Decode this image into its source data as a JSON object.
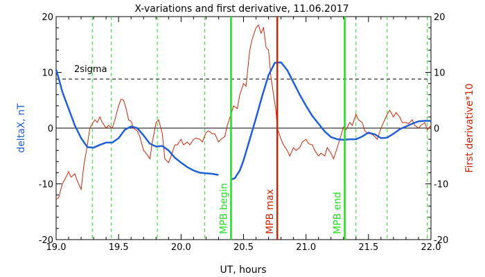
{
  "chart_data": {
    "type": "line",
    "title": "X-variations and first derivative, 11.06.2017",
    "xlabel": "UT, hours",
    "ylabel_left": "deltaX, nT",
    "ylabel_right": "First derivative*10",
    "xlim": [
      19.0,
      22.0
    ],
    "ylim": [
      -20,
      20
    ],
    "xticks": [
      "19.0",
      "19.5",
      "20.0",
      "20.5",
      "21.0",
      "21.5",
      "22.0"
    ],
    "yticks_left": [
      "-20",
      "-10",
      "0",
      "10",
      "20"
    ],
    "yticks_right": [
      "-20",
      "-10",
      "0",
      "10",
      "20"
    ],
    "sigma_label": "2sigma",
    "sigma_level": 8.8,
    "zero_level": 0,
    "colors": {
      "deltaX": "#1f5fd6",
      "derivative": "#cc2200",
      "mpb": "#22dd22",
      "max": "#cc2200",
      "left_axis_label": "#1f5fd6",
      "right_axis_label": "#cc2200"
    },
    "vertical_markers": [
      {
        "name": "MPB begin",
        "x": 20.4,
        "color": "#22dd22"
      },
      {
        "name": "MPB max",
        "x": 20.77,
        "color": "#cc2200"
      },
      {
        "name": "MPB end",
        "x": 21.31,
        "color": "#22dd22"
      }
    ],
    "dashed_verticals": [
      19.29,
      19.44,
      19.81,
      20.19,
      21.4,
      21.65,
      21.97
    ],
    "series": [
      {
        "name": "deltaX, nT",
        "color": "#1f5fd6",
        "segments": [
          {
            "x": [
              19.0,
              19.02,
              19.05,
              19.1,
              19.15,
              19.2,
              19.25,
              19.3,
              19.35,
              19.4,
              19.45,
              19.5,
              19.55,
              19.6,
              19.65,
              19.7,
              19.75,
              19.8,
              19.85,
              19.9,
              19.95,
              20.0,
              20.05,
              20.1,
              20.15,
              20.2,
              20.25,
              20.3
            ],
            "y": [
              10.5,
              9.0,
              6.5,
              3.5,
              0.5,
              -1.8,
              -3.4,
              -3.5,
              -3.0,
              -2.6,
              -2.6,
              -1.8,
              -0.3,
              0.3,
              0.0,
              -1.3,
              -2.8,
              -3.3,
              -3.2,
              -4.0,
              -5.3,
              -6.2,
              -7.0,
              -7.6,
              -8.0,
              -8.1,
              -8.2,
              -8.4
            ]
          },
          {
            "x": [
              20.4,
              20.43,
              20.47,
              20.5,
              20.55,
              20.6,
              20.65,
              20.7,
              20.75,
              20.8,
              20.85,
              20.9,
              20.95,
              21.0,
              21.05,
              21.1,
              21.15,
              21.2,
              21.25,
              21.3,
              21.35,
              21.4,
              21.45,
              21.5,
              21.55,
              21.6,
              21.65,
              21.7,
              21.75,
              21.8,
              21.85,
              21.9,
              21.95,
              22.0
            ],
            "y": [
              -9.2,
              -9.0,
              -7.6,
              -5.8,
              -2.0,
              1.8,
              5.8,
              9.5,
              11.7,
              11.8,
              10.4,
              8.2,
              6.0,
              4.0,
              2.2,
              0.8,
              -0.6,
              -1.6,
              -2.0,
              -2.1,
              -2.0,
              -2.0,
              -1.5,
              -0.8,
              -1.1,
              -1.8,
              -1.7,
              -1.0,
              -0.2,
              0.3,
              0.8,
              1.2,
              1.3,
              1.3
            ]
          }
        ]
      },
      {
        "name": "First derivative*10",
        "color": "#cc2200",
        "x": [
          19.0,
          19.02,
          19.05,
          19.08,
          19.1,
          19.12,
          19.15,
          19.17,
          19.2,
          19.22,
          19.25,
          19.27,
          19.29,
          19.31,
          19.33,
          19.35,
          19.37,
          19.4,
          19.42,
          19.45,
          19.47,
          19.5,
          19.52,
          19.54,
          19.56,
          19.58,
          19.6,
          19.62,
          19.65,
          19.67,
          19.7,
          19.72,
          19.75,
          19.77,
          19.8,
          19.82,
          19.85,
          19.87,
          19.9,
          19.92,
          19.95,
          19.97,
          20.0,
          20.02,
          20.05,
          20.07,
          20.1,
          20.12,
          20.15,
          20.17,
          20.2,
          20.22,
          20.25,
          20.27,
          20.3,
          20.32,
          20.35,
          20.37,
          20.4,
          20.42,
          20.45,
          20.47,
          20.5,
          20.52,
          20.55,
          20.57,
          20.6,
          20.62,
          20.64,
          20.66,
          20.68,
          20.7,
          20.72,
          20.74,
          20.76,
          20.77,
          20.8,
          20.82,
          20.85,
          20.87,
          20.9,
          20.92,
          20.95,
          20.97,
          21.0,
          21.02,
          21.05,
          21.07,
          21.1,
          21.12,
          21.15,
          21.17,
          21.2,
          21.22,
          21.25,
          21.27,
          21.3,
          21.32,
          21.35,
          21.37,
          21.4,
          21.42,
          21.45,
          21.47,
          21.5,
          21.52,
          21.55,
          21.57,
          21.6,
          21.62,
          21.65,
          21.67,
          21.7,
          21.72,
          21.75,
          21.77,
          21.8,
          21.82,
          21.85,
          21.87,
          21.9,
          21.92,
          21.95,
          21.97,
          22.0
        ],
        "y": [
          -12.8,
          -12.5,
          -10.0,
          -8.8,
          -7.8,
          -8.8,
          -8.2,
          -9.5,
          -11.0,
          -7.0,
          -3.0,
          0.0,
          0.8,
          1.5,
          1.0,
          2.0,
          1.0,
          0.0,
          0.5,
          0.0,
          1.5,
          4.0,
          5.2,
          5.0,
          3.5,
          1.5,
          1.2,
          0.0,
          -0.5,
          -1.5,
          -4.0,
          -4.5,
          -5.5,
          -2.5,
          1.0,
          1.5,
          -1.0,
          -5.5,
          -6.2,
          -5.0,
          -3.0,
          -3.0,
          -2.0,
          -3.0,
          -2.5,
          -3.0,
          -2.0,
          -1.8,
          -2.0,
          -2.5,
          -0.8,
          -0.5,
          -1.0,
          -1.0,
          -2.5,
          -2.0,
          -1.5,
          0.5,
          2.5,
          4.0,
          3.5,
          6.0,
          8.0,
          7.5,
          14.0,
          16.0,
          18.0,
          18.5,
          17.0,
          18.0,
          14.5,
          14.0,
          9.0,
          6.0,
          3.0,
          0.0,
          -2.0,
          -3.0,
          -4.0,
          -5.0,
          -3.5,
          -4.0,
          -3.5,
          -2.5,
          -2.0,
          -2.8,
          -3.0,
          -4.0,
          -5.0,
          -4.5,
          -5.0,
          -3.5,
          -4.5,
          -5.5,
          -3.5,
          -2.0,
          0.2,
          -0.3,
          1.0,
          0.5,
          2.5,
          1.5,
          1.0,
          -0.5,
          -1.0,
          -1.0,
          -1.5,
          -2.0,
          0.0,
          1.0,
          2.5,
          3.2,
          2.0,
          2.8,
          2.0,
          1.0,
          1.0,
          0.8,
          1.5,
          0.5,
          0.0,
          0.5,
          1.0,
          -0.3,
          0.5
        ]
      }
    ]
  }
}
